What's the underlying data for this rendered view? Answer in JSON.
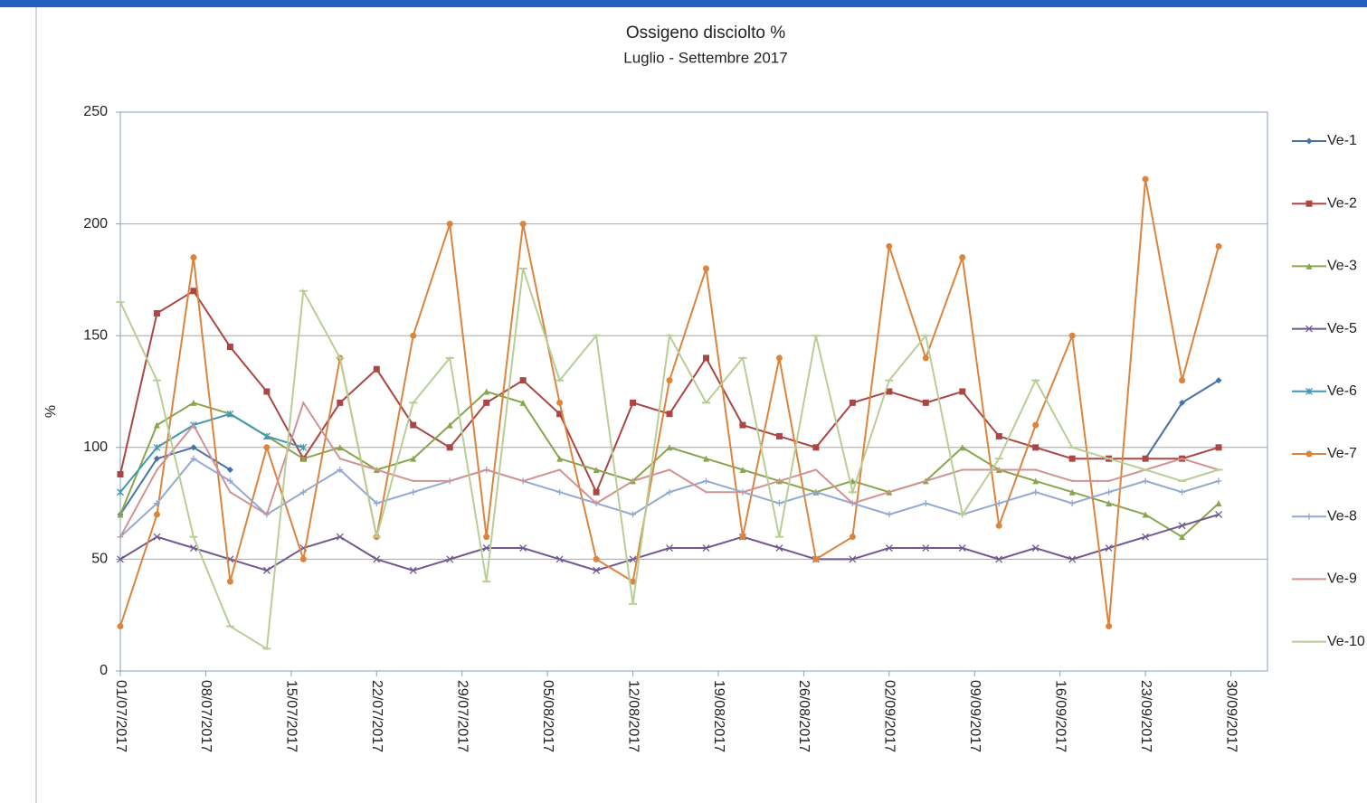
{
  "chart_data": {
    "type": "line",
    "title": "Ossigeno disciolto %",
    "subtitle": "Luglio - Settembre 2017",
    "y_label": "%",
    "ylim": [
      0,
      250
    ],
    "yticks": [
      0,
      50,
      100,
      150,
      200,
      250
    ],
    "xlim": [
      "01/07/2017",
      "03/10/2017"
    ],
    "xticks": [
      "01/07/2017",
      "08/07/2017",
      "15/07/2017",
      "22/07/2017",
      "29/07/2017",
      "05/08/2017",
      "12/08/2017",
      "19/08/2017",
      "26/08/2017",
      "02/09/2017",
      "09/09/2017",
      "16/09/2017",
      "23/09/2017",
      "30/09/2017"
    ],
    "grid": true,
    "legend": "right",
    "x": [
      "01/07/2017",
      "04/07/2017",
      "07/07/2017",
      "10/07/2017",
      "13/07/2017",
      "16/07/2017",
      "19/07/2017",
      "22/07/2017",
      "25/07/2017",
      "28/07/2017",
      "31/07/2017",
      "03/08/2017",
      "06/08/2017",
      "09/08/2017",
      "12/08/2017",
      "15/08/2017",
      "18/08/2017",
      "21/08/2017",
      "24/08/2017",
      "27/08/2017",
      "30/08/2017",
      "02/09/2017",
      "05/09/2017",
      "08/09/2017",
      "11/09/2017",
      "14/09/2017",
      "17/09/2017",
      "20/09/2017",
      "23/09/2017",
      "26/09/2017",
      "29/09/2017"
    ],
    "series": [
      {
        "name": "Ve-1",
        "color": "#4572a7",
        "marker": "diamond",
        "values": [
          70,
          95,
          100,
          90,
          null,
          null,
          null,
          null,
          null,
          null,
          null,
          null,
          null,
          null,
          null,
          null,
          null,
          null,
          null,
          null,
          null,
          null,
          null,
          null,
          null,
          null,
          null,
          null,
          95,
          120,
          130
        ]
      },
      {
        "name": "Ve-2",
        "color": "#aa4643",
        "marker": "square",
        "values": [
          88,
          160,
          170,
          145,
          125,
          95,
          120,
          135,
          110,
          100,
          120,
          130,
          115,
          80,
          120,
          115,
          140,
          110,
          105,
          100,
          120,
          125,
          120,
          125,
          105,
          100,
          95,
          95,
          95,
          95,
          100
        ]
      },
      {
        "name": "Ve-3",
        "color": "#89a54e",
        "marker": "triangle",
        "values": [
          70,
          110,
          120,
          115,
          105,
          95,
          100,
          90,
          95,
          110,
          125,
          120,
          95,
          90,
          85,
          100,
          95,
          90,
          85,
          80,
          85,
          80,
          85,
          100,
          90,
          85,
          80,
          75,
          70,
          60,
          75
        ]
      },
      {
        "name": "Ve-5",
        "color": "#71588f",
        "marker": "x",
        "values": [
          50,
          60,
          55,
          50,
          45,
          55,
          60,
          50,
          45,
          50,
          55,
          55,
          50,
          45,
          50,
          55,
          55,
          60,
          55,
          50,
          50,
          55,
          55,
          55,
          50,
          55,
          50,
          55,
          60,
          65,
          70
        ]
      },
      {
        "name": "Ve-6",
        "color": "#4198af",
        "marker": "star",
        "values": [
          80,
          100,
          110,
          115,
          105,
          100,
          null,
          null,
          null,
          null,
          null,
          null,
          null,
          null,
          null,
          null,
          null,
          null,
          null,
          null,
          null,
          null,
          null,
          null,
          null,
          null,
          null,
          null,
          null,
          null,
          null
        ]
      },
      {
        "name": "Ve-7",
        "color": "#db843d",
        "marker": "circle",
        "values": [
          20,
          70,
          185,
          40,
          100,
          50,
          140,
          60,
          150,
          200,
          60,
          200,
          120,
          50,
          40,
          130,
          180,
          60,
          140,
          50,
          60,
          190,
          140,
          185,
          65,
          110,
          150,
          20,
          220,
          130,
          190
        ]
      },
      {
        "name": "Ve-8",
        "color": "#93a9cf",
        "marker": "plus",
        "values": [
          60,
          75,
          95,
          85,
          70,
          80,
          90,
          75,
          80,
          85,
          90,
          85,
          80,
          75,
          70,
          80,
          85,
          80,
          75,
          80,
          75,
          70,
          75,
          70,
          75,
          80,
          75,
          80,
          85,
          80,
          85
        ]
      },
      {
        "name": "Ve-9",
        "color": "#d19392",
        "marker": "none",
        "values": [
          60,
          90,
          110,
          80,
          70,
          120,
          95,
          90,
          85,
          85,
          90,
          85,
          90,
          75,
          85,
          90,
          80,
          80,
          85,
          90,
          75,
          80,
          85,
          90,
          90,
          90,
          85,
          85,
          90,
          95,
          90
        ]
      },
      {
        "name": "Ve-10",
        "color": "#b9cd96",
        "marker": "dash",
        "values": [
          165,
          130,
          60,
          20,
          10,
          170,
          140,
          60,
          120,
          140,
          40,
          180,
          130,
          150,
          30,
          150,
          120,
          140,
          60,
          150,
          80,
          130,
          150,
          70,
          95,
          130,
          100,
          95,
          90,
          85,
          90
        ]
      }
    ]
  }
}
